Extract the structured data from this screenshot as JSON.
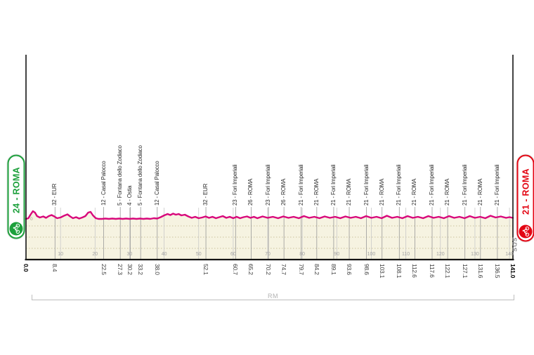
{
  "stage": {
    "start_badge": "24 - ROMA",
    "finish_badge": "21 - ROMA",
    "province_bracket": "RM",
    "logo_text": "SDS",
    "zero_elevation_label": "0"
  },
  "colors": {
    "profile_line": "#d8087b",
    "profile_fill": "#f6f3e1",
    "dotted_grid": "#c9c29c",
    "km_grid": "#c9c9c9",
    "waypoint_line": "#999999",
    "axis": "#141414",
    "start_green": "#1da03c",
    "finish_red": "#e30613"
  },
  "chart_data": {
    "type": "area",
    "x_unit": "km",
    "y_unit": "m",
    "x_range": [
      0,
      141
    ],
    "grid_on": true,
    "grid_ticks_km": [
      10,
      20,
      30,
      40,
      50,
      60,
      70,
      80,
      90,
      100,
      110,
      120,
      130,
      140
    ],
    "distance_labels": [
      {
        "km": 0.0,
        "text": "0.0",
        "bold": true
      },
      {
        "km": 8.4,
        "text": "8.4",
        "bold": false
      },
      {
        "km": 22.5,
        "text": "22.5",
        "bold": false
      },
      {
        "km": 27.3,
        "text": "27.3",
        "bold": false
      },
      {
        "km": 30.2,
        "text": "30.2",
        "bold": false
      },
      {
        "km": 33.2,
        "text": "33.2",
        "bold": false
      },
      {
        "km": 38.0,
        "text": "38.0",
        "bold": false
      },
      {
        "km": 52.1,
        "text": "52.1",
        "bold": false
      },
      {
        "km": 60.7,
        "text": "60.7",
        "bold": false
      },
      {
        "km": 65.2,
        "text": "65.2",
        "bold": false
      },
      {
        "km": 70.2,
        "text": "70.2",
        "bold": false
      },
      {
        "km": 74.7,
        "text": "74.7",
        "bold": false
      },
      {
        "km": 79.7,
        "text": "79.7",
        "bold": false
      },
      {
        "km": 84.2,
        "text": "84.2",
        "bold": false
      },
      {
        "km": 89.1,
        "text": "89.1",
        "bold": false
      },
      {
        "km": 93.6,
        "text": "93.6",
        "bold": false
      },
      {
        "km": 98.6,
        "text": "98.6",
        "bold": false
      },
      {
        "km": 103.1,
        "text": "103.1",
        "bold": false
      },
      {
        "km": 108.1,
        "text": "108.1",
        "bold": false
      },
      {
        "km": 112.6,
        "text": "112.6",
        "bold": false
      },
      {
        "km": 117.6,
        "text": "117.6",
        "bold": false
      },
      {
        "km": 122.1,
        "text": "122.1",
        "bold": false
      },
      {
        "km": 127.1,
        "text": "127.1",
        "bold": false
      },
      {
        "km": 131.6,
        "text": "131.6",
        "bold": false
      },
      {
        "km": 136.5,
        "text": "136.5",
        "bold": false
      },
      {
        "km": 141.0,
        "text": "141.0",
        "bold": true
      }
    ],
    "waypoints": [
      {
        "km": 8.4,
        "label": "32 - EUR"
      },
      {
        "km": 22.5,
        "label": "12 - Casal Palocco"
      },
      {
        "km": 27.3,
        "label": "5 - Fontana dello Zodiaco"
      },
      {
        "km": 30.2,
        "label": "4 - Ostia"
      },
      {
        "km": 33.2,
        "label": "5 - Fontana dello Zodiaco"
      },
      {
        "km": 38.0,
        "label": "12 - Casal Palocco"
      },
      {
        "km": 52.1,
        "label": "32 - EUR"
      },
      {
        "km": 60.7,
        "label": "23 - Fori Imperiali"
      },
      {
        "km": 65.2,
        "label": "26 - ROMA"
      },
      {
        "km": 70.2,
        "label": "23 - Fori Imperiali"
      },
      {
        "km": 74.7,
        "label": "26 - ROMA"
      },
      {
        "km": 79.7,
        "label": "21 - Fori Imperiali"
      },
      {
        "km": 84.2,
        "label": "21 - ROMA"
      },
      {
        "km": 89.1,
        "label": "21 - Fori Imperiali"
      },
      {
        "km": 93.6,
        "label": "21 - ROMA"
      },
      {
        "km": 98.6,
        "label": "21 - Fori Imperiali"
      },
      {
        "km": 103.1,
        "label": "21 - ROMA"
      },
      {
        "km": 108.1,
        "label": "21 - Fori Imperiali"
      },
      {
        "km": 112.6,
        "label": "21 - ROMA"
      },
      {
        "km": 117.6,
        "label": "21 - Fori Imperiali"
      },
      {
        "km": 122.1,
        "label": "21 - ROMA"
      },
      {
        "km": 127.1,
        "label": "21 - Fori Imperiali"
      },
      {
        "km": 131.6,
        "label": "21 - ROMA"
      },
      {
        "km": 136.5,
        "label": "21 - Fori Imperiali"
      }
    ],
    "profile_km_elev": [
      [
        0,
        2
      ],
      [
        0.7,
        4
      ],
      [
        1.3,
        14
      ],
      [
        2,
        24
      ],
      [
        2.6,
        20
      ],
      [
        3.2,
        10
      ],
      [
        4,
        6
      ],
      [
        5,
        9
      ],
      [
        5.8,
        5
      ],
      [
        6.6,
        10
      ],
      [
        7.4,
        13
      ],
      [
        8.2,
        9
      ],
      [
        9,
        4
      ],
      [
        10,
        6
      ],
      [
        11,
        11
      ],
      [
        12,
        15
      ],
      [
        12.8,
        9
      ],
      [
        13.6,
        4
      ],
      [
        14.5,
        7
      ],
      [
        15.4,
        3
      ],
      [
        16.3,
        6
      ],
      [
        17.2,
        10
      ],
      [
        18,
        20
      ],
      [
        18.7,
        22
      ],
      [
        19.4,
        12
      ],
      [
        20.2,
        4
      ],
      [
        21,
        2
      ],
      [
        22,
        2
      ],
      [
        23,
        3
      ],
      [
        24,
        2
      ],
      [
        25,
        3
      ],
      [
        26,
        2
      ],
      [
        27,
        3
      ],
      [
        28,
        2
      ],
      [
        29,
        3
      ],
      [
        30,
        2
      ],
      [
        31,
        3
      ],
      [
        32,
        2
      ],
      [
        33,
        3
      ],
      [
        34,
        2
      ],
      [
        35,
        3
      ],
      [
        36,
        2
      ],
      [
        37,
        4
      ],
      [
        38,
        3
      ],
      [
        39,
        7
      ],
      [
        40,
        12
      ],
      [
        41,
        16
      ],
      [
        41.8,
        13
      ],
      [
        42.6,
        17
      ],
      [
        43.4,
        14
      ],
      [
        44.2,
        16
      ],
      [
        45,
        12
      ],
      [
        46,
        14
      ],
      [
        47,
        9
      ],
      [
        48,
        5
      ],
      [
        49,
        8
      ],
      [
        50,
        4
      ],
      [
        51,
        6
      ],
      [
        52,
        9
      ],
      [
        53,
        5
      ],
      [
        54,
        8
      ],
      [
        55,
        4
      ],
      [
        56,
        7
      ],
      [
        57,
        10
      ],
      [
        58,
        5
      ],
      [
        59,
        8
      ],
      [
        60,
        4
      ],
      [
        61,
        8
      ],
      [
        62,
        4
      ],
      [
        63,
        7
      ],
      [
        64,
        9
      ],
      [
        65,
        5
      ],
      [
        66,
        8
      ],
      [
        67,
        4
      ],
      [
        68.5,
        9
      ],
      [
        70,
        5
      ],
      [
        71.5,
        8
      ],
      [
        73,
        4
      ],
      [
        74.5,
        9
      ],
      [
        76,
        5
      ],
      [
        77.5,
        8
      ],
      [
        79,
        4
      ],
      [
        80.5,
        10
      ],
      [
        82,
        5
      ],
      [
        83.5,
        8
      ],
      [
        85,
        4
      ],
      [
        86.5,
        9
      ],
      [
        88,
        5
      ],
      [
        89.5,
        8
      ],
      [
        91,
        4
      ],
      [
        92.5,
        9
      ],
      [
        94,
        5
      ],
      [
        95.5,
        8
      ],
      [
        97,
        4
      ],
      [
        98.5,
        10
      ],
      [
        100,
        5
      ],
      [
        101.5,
        8
      ],
      [
        103,
        4
      ],
      [
        104.5,
        11
      ],
      [
        106,
        5
      ],
      [
        107.5,
        8
      ],
      [
        109,
        4
      ],
      [
        110.5,
        10
      ],
      [
        112,
        5
      ],
      [
        113.5,
        8
      ],
      [
        115,
        4
      ],
      [
        116.5,
        10
      ],
      [
        118,
        5
      ],
      [
        119.5,
        8
      ],
      [
        121,
        4
      ],
      [
        122.5,
        10
      ],
      [
        124,
        5
      ],
      [
        125.5,
        8
      ],
      [
        127,
        4
      ],
      [
        128.5,
        10
      ],
      [
        130,
        5
      ],
      [
        131.5,
        8
      ],
      [
        133,
        4
      ],
      [
        134.5,
        11
      ],
      [
        136,
        6
      ],
      [
        137.5,
        9
      ],
      [
        139,
        5
      ],
      [
        140,
        7
      ],
      [
        141,
        5
      ]
    ]
  }
}
